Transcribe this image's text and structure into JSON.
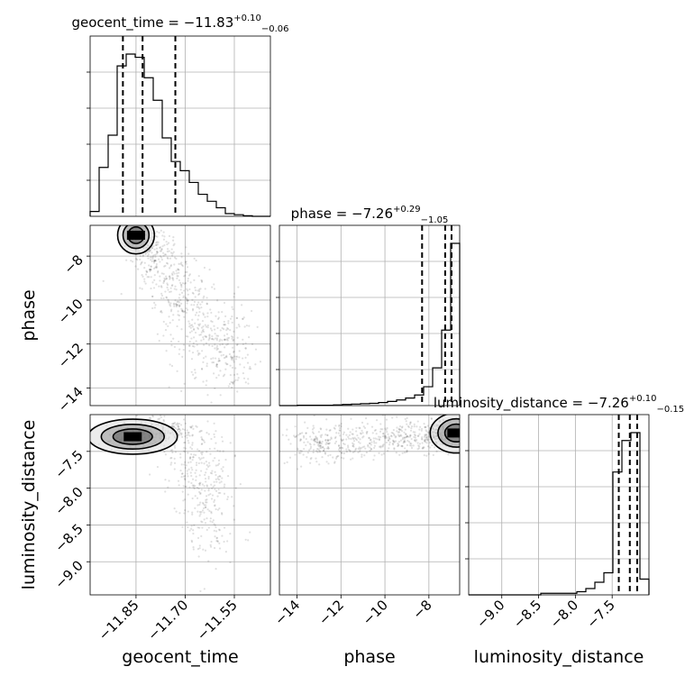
{
  "chart_data": {
    "type": "corner",
    "parameters": [
      "geocent_time",
      "phase",
      "luminosity_distance"
    ],
    "grid": true,
    "titles": [
      {
        "param": "geocent_time",
        "label": "geocent_time = −11.83",
        "sup": "+0.10",
        "sub": "−0.06"
      },
      {
        "param": "phase",
        "label": "phase = −7.26",
        "sup": "+0.29",
        "sub": "−1.05"
      },
      {
        "param": "luminosity_distance",
        "label": "luminosity_distance = −7.26",
        "sup": "+0.10",
        "sub": "−0.15"
      }
    ],
    "ranges": {
      "geocent_time": [
        -11.99,
        -11.44
      ],
      "phase": [
        -14.8,
        -6.6
      ],
      "luminosity_distance": [
        -9.45,
        -7.0
      ]
    },
    "ticks": {
      "geocent_time": {
        "values": [
          -11.85,
          -11.7,
          -11.55
        ],
        "labels": [
          "−11.85",
          "−11.70",
          "−11.55"
        ]
      },
      "phase": {
        "values": [
          -14,
          -12,
          -10,
          -8
        ],
        "labels": [
          "−14",
          "−12",
          "−10",
          "−8"
        ]
      },
      "luminosity_distance": {
        "values": [
          -9.0,
          -8.5,
          -8.0,
          -7.5
        ],
        "labels": [
          "−9.0",
          "−8.5",
          "−8.0",
          "−7.5"
        ]
      }
    },
    "quantile_lines": {
      "geocent_time": [
        -11.89,
        -11.83,
        -11.73
      ],
      "phase": [
        -8.31,
        -7.26,
        -6.97
      ],
      "luminosity_distance": [
        -7.41,
        -7.26,
        -7.16
      ]
    },
    "histograms": {
      "geocent_time": {
        "edges": [
          -11.99,
          -11.9625,
          -11.935,
          -11.9075,
          -11.88,
          -11.8525,
          -11.825,
          -11.7975,
          -11.77,
          -11.7425,
          -11.715,
          -11.6875,
          -11.66,
          -11.6325,
          -11.605,
          -11.5775,
          -11.55,
          -11.5225,
          -11.495,
          -11.4675,
          -11.44
        ],
        "counts": [
          9,
          91,
          151,
          280,
          302,
          296,
          258,
          216,
          146,
          102,
          85,
          63,
          41,
          28,
          16,
          5,
          3,
          1,
          0,
          0
        ]
      },
      "phase": {
        "edges": [
          -14.8,
          -14.39,
          -13.98,
          -13.57,
          -13.16,
          -12.75,
          -12.34,
          -11.93,
          -11.52,
          -11.11,
          -10.7,
          -10.29,
          -9.88,
          -9.47,
          -9.06,
          -8.65,
          -8.24,
          -7.83,
          -7.42,
          -7.01,
          -6.6
        ],
        "counts": [
          0,
          0,
          1,
          1,
          1,
          1,
          2,
          3,
          4,
          5,
          6,
          8,
          11,
          15,
          20,
          28,
          50,
          100,
          200,
          430
        ]
      },
      "luminosity_distance": {
        "edges": [
          -9.45,
          -9.3275,
          -9.205,
          -9.0825,
          -8.96,
          -8.8375,
          -8.715,
          -8.5925,
          -8.47,
          -8.3475,
          -8.225,
          -8.1025,
          -7.98,
          -7.8575,
          -7.735,
          -7.6125,
          -7.49,
          -7.3675,
          -7.245,
          -7.1225,
          -7.0
        ],
        "counts": [
          0,
          0,
          0,
          0,
          0,
          0,
          0,
          0,
          1,
          1,
          1,
          1,
          2,
          4,
          8,
          14,
          78,
          98,
          103,
          10
        ]
      }
    },
    "scatter": {
      "phase_vs_geocent_time": {
        "centers": [
          [
            -11.85,
            -7.05,
            0.013,
            0.25,
            1
          ],
          [
            -11.8,
            -7.8,
            0.035,
            0.55,
            1
          ],
          [
            -11.74,
            -9.5,
            0.04,
            1.1,
            1
          ],
          [
            -11.66,
            -11.0,
            0.04,
            1.2,
            1
          ],
          [
            -11.57,
            -12.3,
            0.04,
            1.0,
            1
          ]
        ],
        "mode": [
          -11.85,
          -7.05
        ]
      },
      "luminosity_distance_vs_geocent_time": {
        "centers": [
          [
            -11.86,
            -7.32,
            0.04,
            0.07,
            1
          ],
          [
            -11.78,
            -7.22,
            0.05,
            0.09,
            1
          ],
          [
            -11.68,
            -7.6,
            0.05,
            0.35,
            1
          ],
          [
            -11.62,
            -8.2,
            0.04,
            0.4,
            1
          ]
        ],
        "mode": [
          -11.86,
          -7.3
        ]
      },
      "luminosity_distance_vs_phase": {
        "centers": [
          [
            -7.4,
            -7.25,
            0.35,
            0.08,
            1
          ],
          [
            -8.6,
            -7.3,
            0.9,
            0.12,
            1
          ],
          [
            -10.8,
            -7.35,
            1.2,
            0.12,
            1
          ],
          [
            -13.0,
            -7.4,
            0.8,
            0.15,
            1
          ]
        ],
        "mode": [
          -6.75,
          -7.25
        ]
      }
    }
  },
  "labels": {
    "x_geocent_time": "geocent_time",
    "x_phase": "phase",
    "x_luminosity_distance": "luminosity_distance",
    "y_phase": "phase",
    "y_luminosity_distance": "luminosity_distance"
  }
}
